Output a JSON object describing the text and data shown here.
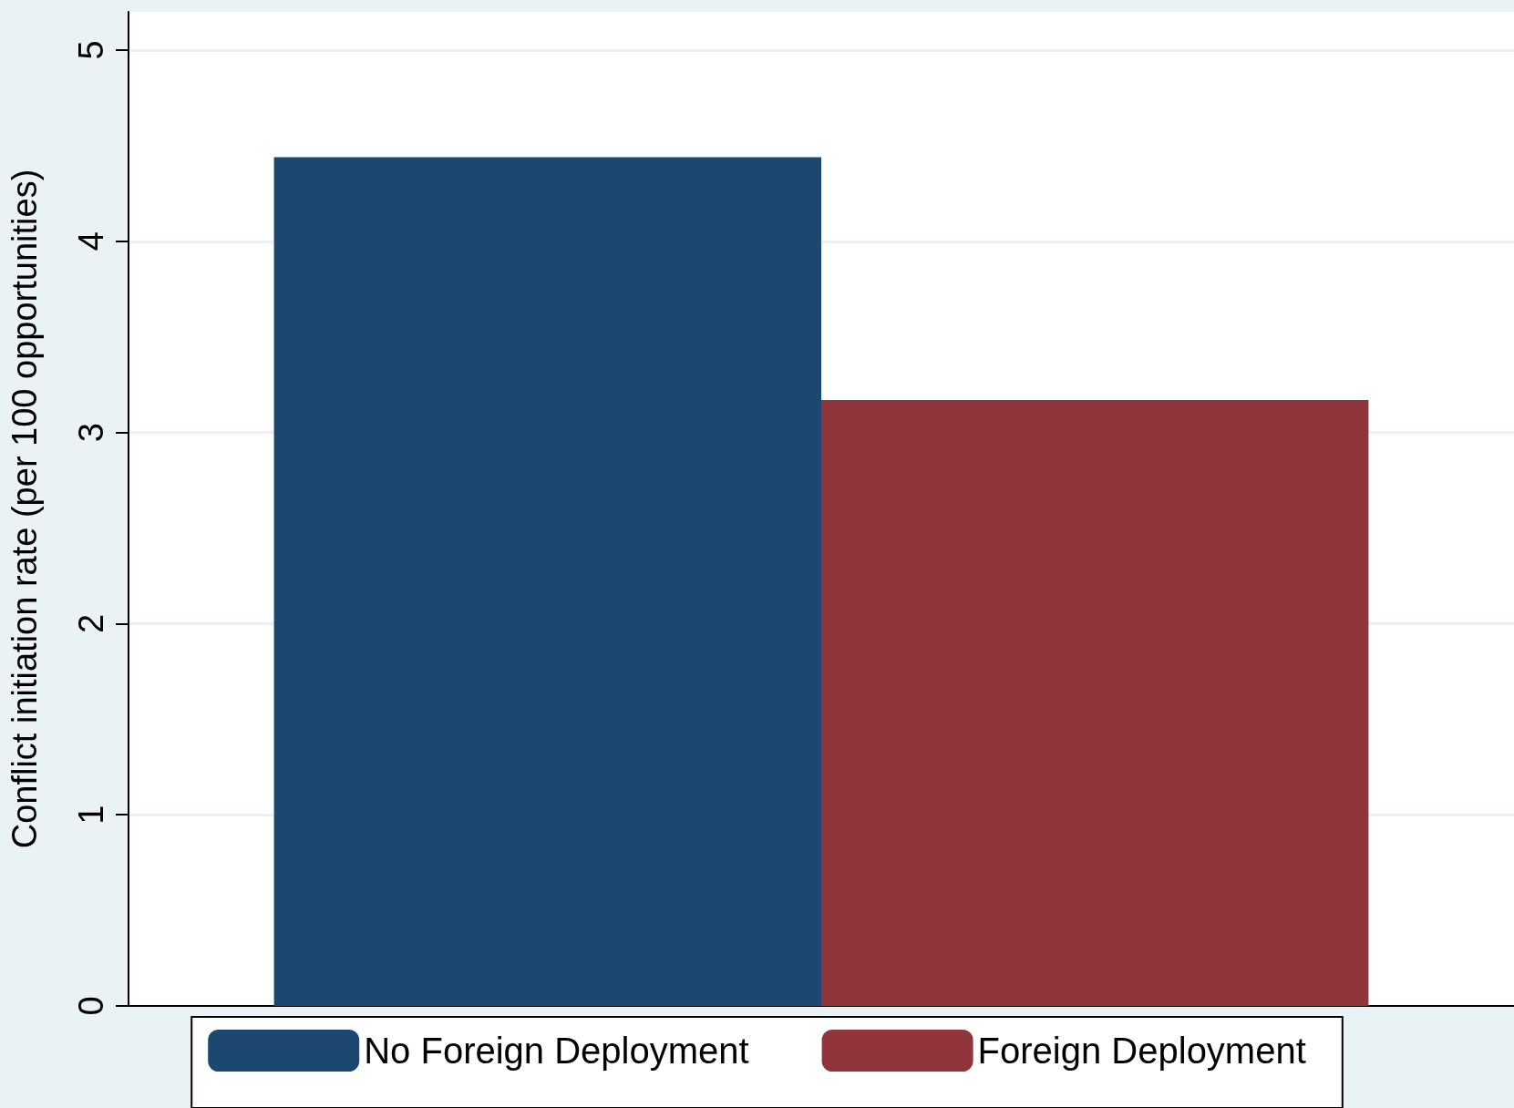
{
  "chart_data": {
    "type": "bar",
    "ylabel": "Conflict initiation rate (per 100 opportunities)",
    "categories": [
      null
    ],
    "series": [
      {
        "name": "No Foreign Deployment",
        "color": "#1c4870",
        "values": [
          4.44
        ]
      },
      {
        "name": "Foreign Deployment",
        "color": "#90353c",
        "values": [
          3.17
        ]
      }
    ],
    "ylim": [
      0,
      5.2
    ],
    "yticks": [
      0,
      1,
      2,
      3,
      4,
      5
    ],
    "grid": "y",
    "legend": "bottom"
  }
}
